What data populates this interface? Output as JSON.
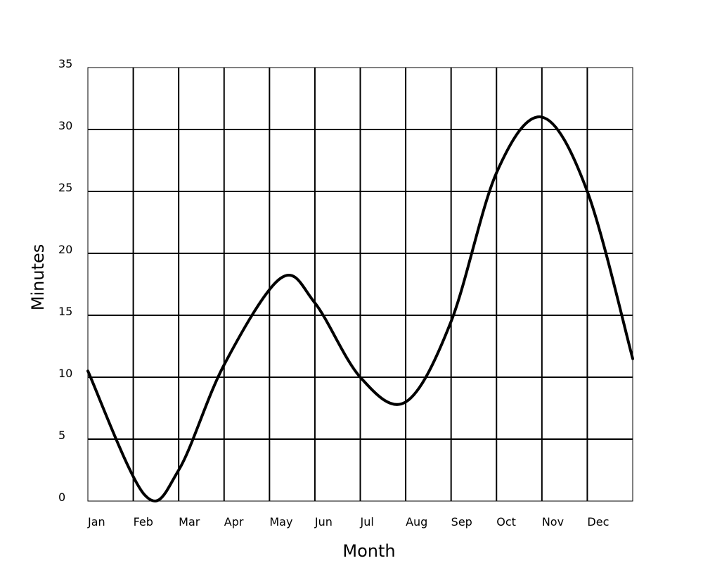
{
  "chart_data": {
    "type": "line",
    "title": "",
    "xlabel": "Month",
    "ylabel": "Minutes",
    "categories": [
      "Jan",
      "Feb",
      "Mar",
      "Apr",
      "May",
      "Jun",
      "Jul",
      "Aug",
      "Sep",
      "Oct",
      "Nov",
      "Dec"
    ],
    "y_ticks": [
      "0",
      "5",
      "10",
      "15",
      "20",
      "25",
      "30",
      "35"
    ],
    "ylim": [
      0,
      35
    ],
    "grid": true,
    "legend": "none",
    "series": [
      {
        "values": [
          10.5,
          0.5,
          2.5,
          11.0,
          18.0,
          16.0,
          10.0,
          8.0,
          14.5,
          26.5,
          31.0,
          25.0,
          11.5
        ],
        "x": [
          0.0,
          1.25,
          2.0,
          3.0,
          4.25,
          5.0,
          6.0,
          7.0,
          8.0,
          9.0,
          10.0,
          11.0,
          12.0
        ],
        "color": "#000000"
      }
    ]
  }
}
